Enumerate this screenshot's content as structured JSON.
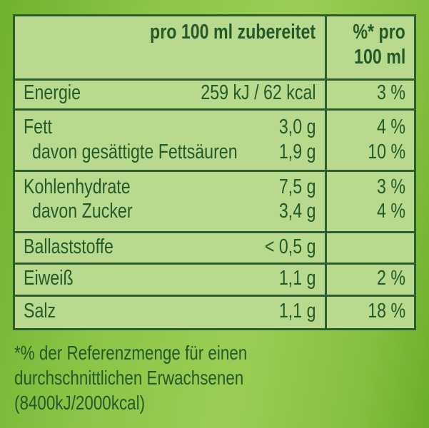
{
  "colors": {
    "text": "#235a2a",
    "table_fill": "#b9d98f",
    "background": "#8cc547"
  },
  "header": {
    "per_100ml": "pro 100 ml zubereitet",
    "percent_line1": "%* pro",
    "percent_line2": "100 ml"
  },
  "rows": [
    {
      "label": "Energie",
      "value": "259 kJ / 62 kcal",
      "percent": "3 %"
    },
    {
      "label": "Fett",
      "value": "3,0 g",
      "percent": "4 %"
    },
    {
      "label": "davon gesättigte Fettsäuren",
      "value": "1,9 g",
      "percent": "10 %"
    },
    {
      "label": "Kohlenhydrate",
      "value": "7,5 g",
      "percent": "3 %"
    },
    {
      "label": "davon Zucker",
      "value": "3,4 g",
      "percent": "4 %"
    },
    {
      "label": "Ballaststoffe",
      "value": "< 0,5 g",
      "percent": ""
    },
    {
      "label": "Eiweiß",
      "value": "1,1 g",
      "percent": "2 %"
    },
    {
      "label": "Salz",
      "value": "1,1 g",
      "percent": "18 %"
    }
  ],
  "footnote": {
    "line1": "*% der Referenzmenge für einen",
    "line2": "durchschnittlichen Erwachsenen",
    "line3": "(8400kJ/2000kcal)"
  }
}
